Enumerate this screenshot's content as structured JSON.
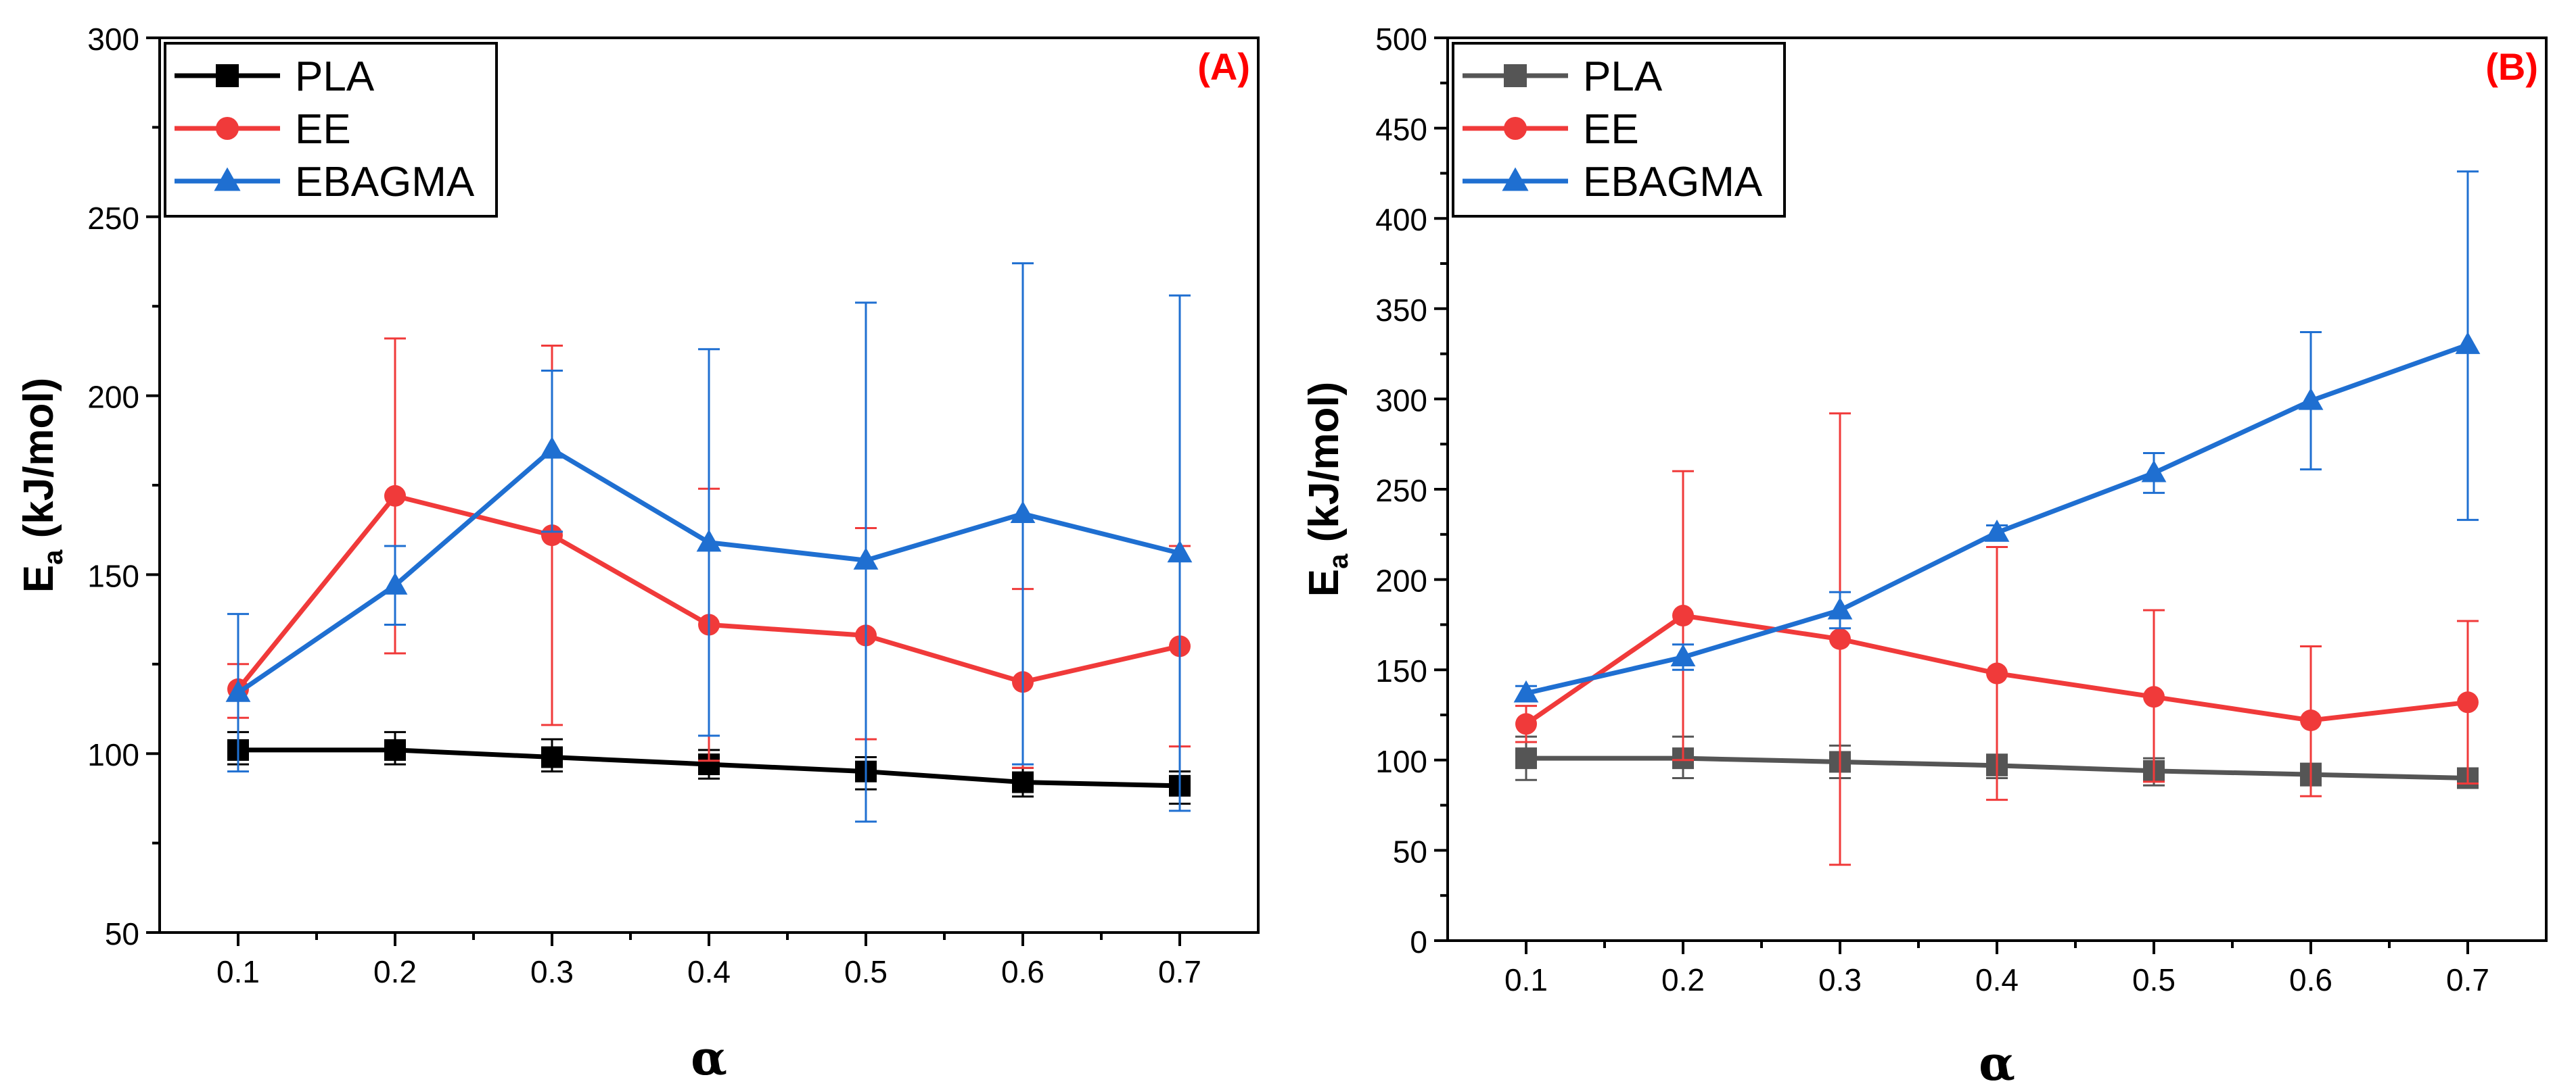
{
  "chart_data": [
    {
      "type": "line",
      "panel_label": "(A)",
      "title": "",
      "xlabel": "α",
      "ylabel_main": "E",
      "ylabel_sub": "a",
      "ylabel_rest": " (kJ/mol)",
      "x": [
        0.1,
        0.2,
        0.3,
        0.4,
        0.5,
        0.6,
        0.7
      ],
      "x_tick_labels": [
        "0.1",
        "0.2",
        "0.3",
        "0.4",
        "0.5",
        "0.6",
        "0.7"
      ],
      "xlim": [
        0.05,
        0.75
      ],
      "ylim": [
        50,
        300
      ],
      "y_ticks": [
        50,
        100,
        150,
        200,
        250,
        300
      ],
      "y_tick_labels": [
        "50",
        "100",
        "150",
        "200",
        "250",
        "300"
      ],
      "legend_position": "top-left",
      "series": [
        {
          "name": "PLA",
          "color": "#000000",
          "marker": "square",
          "values": [
            101,
            101,
            99,
            97,
            95,
            92,
            91
          ],
          "err_low": [
            97,
            97,
            95,
            93,
            90,
            88,
            86
          ],
          "err_high": [
            106,
            106,
            104,
            101,
            99,
            96,
            95
          ]
        },
        {
          "name": "EE",
          "color": "#f03a3a",
          "marker": "circle",
          "values": [
            118,
            172,
            161,
            136,
            133,
            120,
            130
          ],
          "err_low": [
            110,
            128,
            108,
            98,
            104,
            96,
            102
          ],
          "err_high": [
            125,
            216,
            214,
            174,
            163,
            146,
            158
          ]
        },
        {
          "name": "EBAGMA",
          "color": "#1f6fd1",
          "marker": "triangle",
          "values": [
            117,
            147,
            185,
            159,
            154,
            167,
            156
          ],
          "err_low": [
            95,
            136,
            162,
            105,
            81,
            97,
            84
          ],
          "err_high": [
            139,
            158,
            207,
            213,
            226,
            237,
            228
          ]
        }
      ]
    },
    {
      "type": "line",
      "panel_label": "(B)",
      "title": "",
      "xlabel": "α",
      "ylabel_main": "E",
      "ylabel_sub": "a",
      "ylabel_rest": " (kJ/mol)",
      "x": [
        0.1,
        0.2,
        0.3,
        0.4,
        0.5,
        0.6,
        0.7
      ],
      "x_tick_labels": [
        "0.1",
        "0.2",
        "0.3",
        "0.4",
        "0.5",
        "0.6",
        "0.7"
      ],
      "xlim": [
        0.05,
        0.75
      ],
      "ylim": [
        0,
        500
      ],
      "y_ticks": [
        0,
        50,
        100,
        150,
        200,
        250,
        300,
        350,
        400,
        450,
        500
      ],
      "y_tick_labels": [
        "0",
        "50",
        "100",
        "150",
        "200",
        "250",
        "300",
        "350",
        "400",
        "450",
        "500"
      ],
      "legend_position": "top-left",
      "series": [
        {
          "name": "PLA",
          "color": "#555555",
          "marker": "square",
          "values": [
            101,
            101,
            99,
            97,
            94,
            92,
            90
          ],
          "err_low": [
            89,
            90,
            90,
            90,
            86,
            86,
            87
          ],
          "err_high": [
            113,
            113,
            108,
            103,
            101,
            98,
            94
          ]
        },
        {
          "name": "EE",
          "color": "#f03a3a",
          "marker": "circle",
          "values": [
            120,
            180,
            167,
            148,
            135,
            122,
            132
          ],
          "err_low": [
            110,
            100,
            42,
            78,
            88,
            80,
            87
          ],
          "err_high": [
            130,
            260,
            292,
            218,
            183,
            163,
            177
          ]
        },
        {
          "name": "EBAGMA",
          "color": "#1f6fd1",
          "marker": "triangle",
          "values": [
            137,
            157,
            183,
            226,
            259,
            299,
            330
          ],
          "err_low": [
            133,
            150,
            173,
            222,
            248,
            261,
            233
          ],
          "err_high": [
            141,
            164,
            193,
            230,
            270,
            337,
            426
          ]
        }
      ]
    }
  ]
}
